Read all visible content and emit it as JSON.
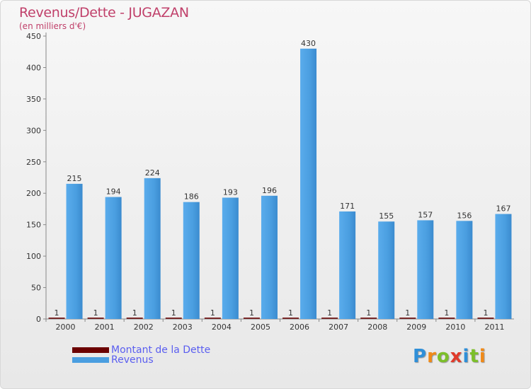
{
  "chart_data": {
    "type": "bar",
    "title": "Revenus/Dette - JUGAZAN",
    "subtitle": "(en milliers d'€)",
    "categories": [
      "2000",
      "2001",
      "2002",
      "2003",
      "2004",
      "2005",
      "2006",
      "2007",
      "2008",
      "2009",
      "2010",
      "2011"
    ],
    "series": [
      {
        "name": "Montant de la Dette",
        "color": "#6b0000",
        "values": [
          1,
          1,
          1,
          1,
          1,
          1,
          1,
          1,
          1,
          1,
          1,
          1
        ]
      },
      {
        "name": "Revenus",
        "color": "#4a9ee0",
        "values": [
          215,
          194,
          224,
          186,
          193,
          196,
          430,
          171,
          155,
          157,
          156,
          167
        ]
      }
    ],
    "yticks": [
      0,
      50,
      100,
      150,
      200,
      250,
      300,
      350,
      400,
      450
    ],
    "ylim": [
      0,
      450
    ],
    "grid": false,
    "legend_position": "bottom-left"
  },
  "logo": {
    "letters": [
      "P",
      "r",
      "o",
      "x",
      "i",
      "t",
      "i"
    ],
    "colors": [
      "#2f8fd8",
      "#f08a18",
      "#7cbf2a",
      "#e03a2a",
      "#2f8fd8",
      "#7cbf2a",
      "#f08a18"
    ]
  }
}
